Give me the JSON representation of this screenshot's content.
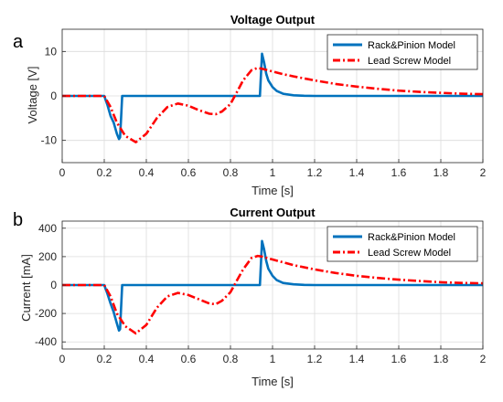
{
  "chart_data": [
    {
      "type": "line",
      "panel_label": "a",
      "title": "Voltage Output",
      "xlabel": "Time [s]",
      "ylabel": "Voltage [V]",
      "xlim": [
        0,
        2
      ],
      "ylim": [
        -15,
        15
      ],
      "xticks": [
        0,
        0.2,
        0.4,
        0.6,
        0.8,
        1,
        1.2,
        1.4,
        1.6,
        1.8,
        2
      ],
      "xtick_labels": [
        "0",
        "0.2",
        "0.4",
        "0.6",
        "0.8",
        "1",
        "1.2",
        "1.4",
        "1.6",
        "1.8",
        "2"
      ],
      "yticks": [
        -10,
        0,
        10
      ],
      "ytick_labels": [
        "-10",
        "0",
        "10"
      ],
      "grid": true,
      "legend_position": "top-right",
      "series": [
        {
          "name": "Rack&Pinion Model",
          "color": "#0072BD",
          "style": "solid",
          "x": [
            0,
            0.2,
            0.215,
            0.23,
            0.245,
            0.26,
            0.27,
            0.275,
            0.28,
            0.285,
            0.3,
            0.5,
            0.7,
            0.9,
            0.94,
            0.945,
            0.95,
            0.96,
            0.97,
            0.98,
            1.0,
            1.02,
            1.05,
            1.1,
            1.15,
            1.2,
            1.3,
            2.0
          ],
          "y": [
            0,
            0,
            -2,
            -4.5,
            -6,
            -8.5,
            -9.7,
            -9.3,
            -5,
            0,
            0,
            0,
            0,
            0,
            0,
            5,
            9.5,
            7.5,
            5,
            3.5,
            2,
            1.1,
            0.5,
            0.15,
            0.05,
            0,
            0,
            0
          ]
        },
        {
          "name": "Lead Screw Model",
          "color": "#FF0000",
          "style": "dashdot",
          "x": [
            0,
            0.2,
            0.23,
            0.26,
            0.3,
            0.35,
            0.4,
            0.45,
            0.5,
            0.55,
            0.6,
            0.65,
            0.7,
            0.73,
            0.76,
            0.8,
            0.83,
            0.86,
            0.9,
            0.93,
            0.95,
            1.0,
            1.05,
            1.1,
            1.2,
            1.3,
            1.4,
            1.5,
            1.6,
            1.7,
            1.8,
            1.9,
            2.0
          ],
          "y": [
            0,
            0,
            -2.5,
            -6,
            -9,
            -10.4,
            -8.5,
            -5,
            -2.5,
            -1.7,
            -2.2,
            -3.2,
            -4,
            -4.1,
            -3.5,
            -1.8,
            0.8,
            3.5,
            5.8,
            6.3,
            6.1,
            5.5,
            4.9,
            4.4,
            3.5,
            2.7,
            2.1,
            1.6,
            1.2,
            0.9,
            0.7,
            0.5,
            0.4
          ]
        }
      ]
    },
    {
      "type": "line",
      "panel_label": "b",
      "title": "Current Output",
      "xlabel": "Time [s]",
      "ylabel": "Current [mA]",
      "xlim": [
        0,
        2
      ],
      "ylim": [
        -450,
        450
      ],
      "xticks": [
        0,
        0.2,
        0.4,
        0.6,
        0.8,
        1,
        1.2,
        1.4,
        1.6,
        1.8,
        2
      ],
      "xtick_labels": [
        "0",
        "0.2",
        "0.4",
        "0.6",
        "0.8",
        "1",
        "1.2",
        "1.4",
        "1.6",
        "1.8",
        "2"
      ],
      "yticks": [
        -400,
        -200,
        0,
        200,
        400
      ],
      "ytick_labels": [
        "-400",
        "-200",
        "0",
        "200",
        "400"
      ],
      "grid": true,
      "legend_position": "top-right",
      "series": [
        {
          "name": "Rack&Pinion Model",
          "color": "#0072BD",
          "style": "solid",
          "x": [
            0,
            0.2,
            0.215,
            0.23,
            0.245,
            0.26,
            0.27,
            0.275,
            0.28,
            0.285,
            0.3,
            0.5,
            0.7,
            0.9,
            0.94,
            0.945,
            0.95,
            0.96,
            0.97,
            0.98,
            1.0,
            1.02,
            1.05,
            1.1,
            1.15,
            1.2,
            1.3,
            2.0
          ],
          "y": [
            0,
            0,
            -60,
            -130,
            -190,
            -270,
            -320,
            -310,
            -160,
            0,
            0,
            0,
            0,
            0,
            0,
            160,
            310,
            250,
            170,
            115,
            65,
            35,
            15,
            5,
            1,
            0,
            0,
            0
          ]
        },
        {
          "name": "Lead Screw Model",
          "color": "#FF0000",
          "style": "dashdot",
          "x": [
            0,
            0.2,
            0.23,
            0.26,
            0.3,
            0.35,
            0.4,
            0.45,
            0.5,
            0.55,
            0.6,
            0.65,
            0.7,
            0.73,
            0.76,
            0.8,
            0.83,
            0.86,
            0.9,
            0.93,
            0.95,
            1.0,
            1.05,
            1.1,
            1.2,
            1.3,
            1.4,
            1.5,
            1.6,
            1.7,
            1.8,
            1.9,
            2.0
          ],
          "y": [
            0,
            0,
            -80,
            -200,
            -290,
            -340,
            -280,
            -160,
            -80,
            -55,
            -70,
            -100,
            -130,
            -135,
            -110,
            -50,
            30,
            110,
            190,
            205,
            200,
            180,
            160,
            140,
            110,
            85,
            65,
            50,
            38,
            28,
            20,
            15,
            12
          ]
        }
      ]
    }
  ]
}
